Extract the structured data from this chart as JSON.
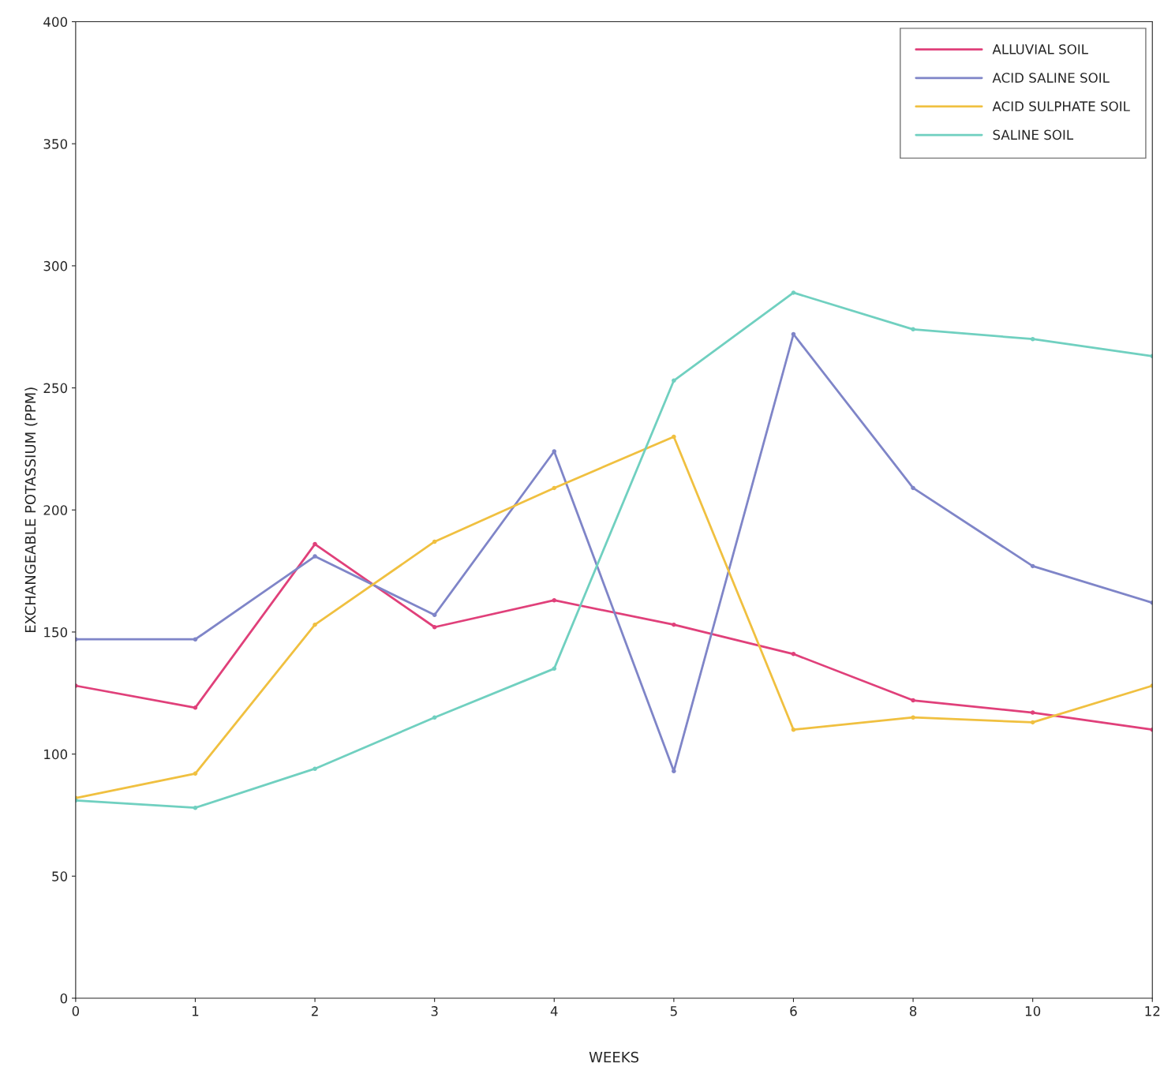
{
  "chart_data": {
    "type": "line",
    "xlabel": "WEEKS",
    "ylabel": "EXCHANGEABLE POTASSIUM (PPM)",
    "categories": [
      "0",
      "1",
      "2",
      "3",
      "4",
      "5",
      "6",
      "8",
      "10",
      "12"
    ],
    "series": [
      {
        "name": "ALLUVIAL SOIL",
        "color": "#e0407a",
        "values": [
          128,
          119,
          186,
          152,
          163,
          153,
          141,
          122,
          117,
          110
        ]
      },
      {
        "name": "ACID SALINE SOIL",
        "color": "#7f85c8",
        "values": [
          147,
          147,
          181,
          157,
          224,
          93,
          272,
          209,
          177,
          162
        ]
      },
      {
        "name": "ACID SULPHATE SOIL",
        "color": "#f0c040",
        "values": [
          82,
          92,
          153,
          187,
          209,
          230,
          110,
          115,
          113,
          128
        ]
      },
      {
        "name": "SALINE SOIL",
        "color": "#70d0c0",
        "values": [
          81,
          78,
          94,
          115,
          135,
          253,
          289,
          274,
          270,
          263
        ]
      }
    ],
    "ylim": [
      0,
      400
    ],
    "yticks": [
      0,
      50,
      100,
      150,
      200,
      250,
      300,
      350,
      400
    ],
    "grid": false,
    "legend": "top right",
    "marker": "circle",
    "line_style": "solid"
  }
}
